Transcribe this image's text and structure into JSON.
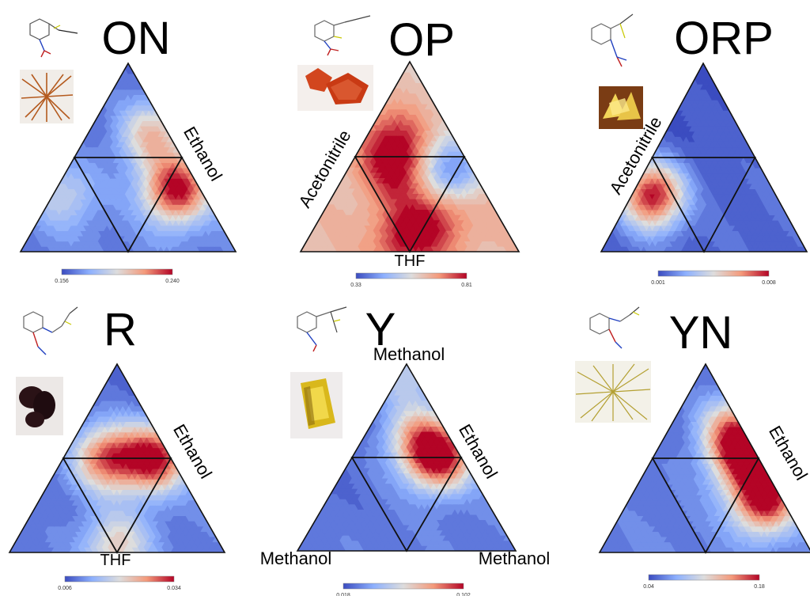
{
  "chart_data": [
    {
      "type": "heatmap",
      "title": "ON",
      "axis_labels": {
        "right": "Ethanol"
      },
      "colorbar": {
        "min": 0.156,
        "max": 0.24,
        "min_label": "0.156",
        "max_label": "0.240"
      },
      "hotspots": [
        {
          "a": 0.33,
          "b": 0.56,
          "c": 0.11,
          "level": 1.0
        },
        {
          "a": 0.62,
          "b": 0.3,
          "c": 0.08,
          "level": 0.62
        },
        {
          "a": 0.3,
          "b": 0.05,
          "c": 0.65,
          "level": 0.42
        }
      ],
      "base_level": 0.12
    },
    {
      "type": "heatmap",
      "title": "OP",
      "axis_labels": {
        "left": "Acetonitrile",
        "bottom": "THF"
      },
      "colorbar": {
        "min": 0.33,
        "max": 0.81,
        "min_label": "0.33",
        "max_label": "0.81"
      },
      "hotspots": [
        {
          "a": 0.58,
          "b": 0.14,
          "c": 0.28,
          "level": 0.95
        },
        {
          "a": 0.42,
          "b": 0.23,
          "c": 0.35,
          "level": 0.92
        },
        {
          "a": 0.08,
          "b": 0.46,
          "c": 0.46,
          "level": 1.0
        },
        {
          "a": 0.22,
          "b": 0.54,
          "c": 0.24,
          "level": 0.85
        },
        {
          "a": 0.43,
          "b": 0.48,
          "c": 0.09,
          "level": 0.1
        }
      ],
      "base_level": 0.62
    },
    {
      "type": "heatmap",
      "title": "ORP",
      "axis_labels": {
        "left": "Acetonitrile"
      },
      "colorbar": {
        "min": 0.001,
        "max": 0.008,
        "min_label": "0.001",
        "max_label": "0.008"
      },
      "hotspots": [
        {
          "a": 0.3,
          "b": 0.1,
          "c": 0.6,
          "level": 1.0
        }
      ],
      "base_level": 0.05
    },
    {
      "type": "heatmap",
      "title": "R",
      "axis_labels": {
        "right": "Ethanol",
        "bottom": "THF"
      },
      "colorbar": {
        "min": 0.006,
        "max": 0.034,
        "min_label": "0.006",
        "max_label": "0.034"
      },
      "hotspots": [
        {
          "a": 0.5,
          "b": 0.2,
          "c": 0.3,
          "level": 0.85
        },
        {
          "a": 0.5,
          "b": 0.42,
          "c": 0.08,
          "level": 1.0
        },
        {
          "a": 0.04,
          "b": 0.48,
          "c": 0.48,
          "level": 0.55
        }
      ],
      "base_level": 0.1
    },
    {
      "type": "heatmap",
      "title": "Y",
      "axis_labels": {
        "top": "Methanol",
        "right": "Ethanol",
        "bottom_left": "Methanol",
        "bottom_right": "Methanol"
      },
      "colorbar": {
        "min": 0.018,
        "max": 0.102,
        "min_label": "0.018",
        "max_label": "0.102"
      },
      "hotspots": [
        {
          "a": 0.5,
          "b": 0.4,
          "c": 0.1,
          "level": 1.0
        },
        {
          "a": 0.62,
          "b": 0.24,
          "c": 0.14,
          "level": 0.55
        },
        {
          "a": 0.96,
          "b": 0.02,
          "c": 0.02,
          "level": 0.45
        }
      ],
      "base_level": 0.1
    },
    {
      "type": "heatmap",
      "title": "YN",
      "axis_labels": {
        "right": "Ethanol"
      },
      "colorbar": {
        "min": 0.04,
        "max": 0.18,
        "min_label": "0.04",
        "max_label": "0.18"
      },
      "hotspots": [
        {
          "a": 0.28,
          "b": 0.64,
          "c": 0.08,
          "level": 1.0
        },
        {
          "a": 0.5,
          "b": 0.44,
          "c": 0.06,
          "level": 0.9
        },
        {
          "a": 0.65,
          "b": 0.3,
          "c": 0.05,
          "level": 0.7
        }
      ],
      "base_level": 0.12
    }
  ],
  "colors": {
    "cold": "#3b4cc0",
    "neutral": "#dddddd",
    "hot": "#b40426",
    "crystal_ON": "#b45a1e",
    "crystal_OP": "#d2461e",
    "crystal_ORP": "#e8c448",
    "crystal_R": "#2a1216",
    "crystal_Y": "#d9b81c",
    "crystal_YN": "#b4a032"
  },
  "icons": [
    "molecule-structure-icon",
    "crystal-photo-icon"
  ]
}
